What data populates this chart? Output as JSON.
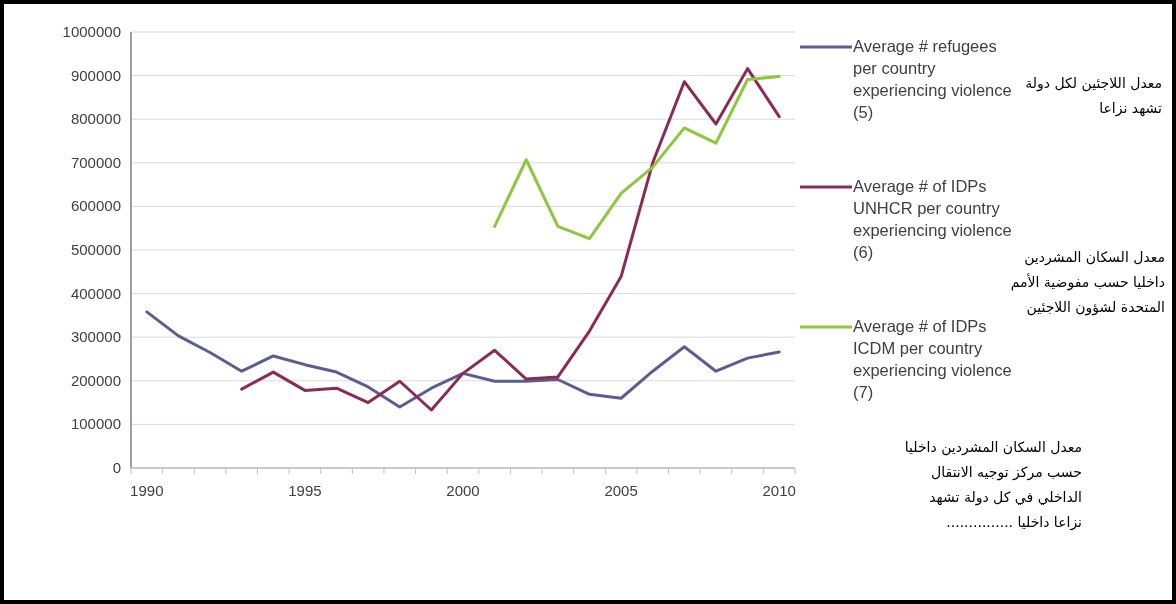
{
  "chart_data": {
    "type": "line",
    "categories": [
      "1990",
      null,
      null,
      null,
      null,
      "1995",
      null,
      null,
      null,
      null,
      "2000",
      null,
      null,
      null,
      null,
      "2005",
      null,
      null,
      null,
      null,
      "2010"
    ],
    "series": [
      {
        "name": "Average # refugees per country experiencing violence (5)",
        "color": "#5b5e8f",
        "values": [
          358000,
          303000,
          265000,
          222000,
          257000,
          237000,
          220000,
          186000,
          140000,
          183000,
          217000,
          199000,
          199000,
          203000,
          169000,
          160000,
          222000,
          278000,
          222000,
          252000,
          266000
        ]
      },
      {
        "name": "Average # of IDPs UNHCR per country experiencing violence (6)",
        "color": "#8b2a55",
        "values": [
          null,
          null,
          null,
          181000,
          220000,
          178000,
          183000,
          150000,
          199000,
          133000,
          217000,
          270000,
          204000,
          209000,
          314000,
          439000,
          700000,
          886000,
          789000,
          916000,
          806000
        ]
      },
      {
        "name": "Average # of IDPs ICDM per country experiencing violence (7)",
        "color": "#8dc63f",
        "values": [
          null,
          null,
          null,
          null,
          null,
          null,
          null,
          null,
          null,
          null,
          null,
          554000,
          707000,
          554000,
          526000,
          630000,
          690000,
          780000,
          745000,
          891000,
          898000
        ]
      }
    ],
    "ylim": [
      0,
      1000000
    ],
    "yticks": [
      0,
      100000,
      200000,
      300000,
      400000,
      500000,
      600000,
      700000,
      800000,
      900000,
      1000000
    ],
    "grid": "y",
    "legend": "right",
    "annotations": [
      "معدل اللاجئين لكل دولة تشهد نزاعا",
      "معدل السكان المشردين داخليا حسب مفوضية الأمم المتحدة لشؤون اللاجئين",
      "معدل السكان المشردين داخليا حسب مركز توجيه الانتقال الداخلي في كل دولة تشهد نزاعا داخليا ..............."
    ]
  }
}
